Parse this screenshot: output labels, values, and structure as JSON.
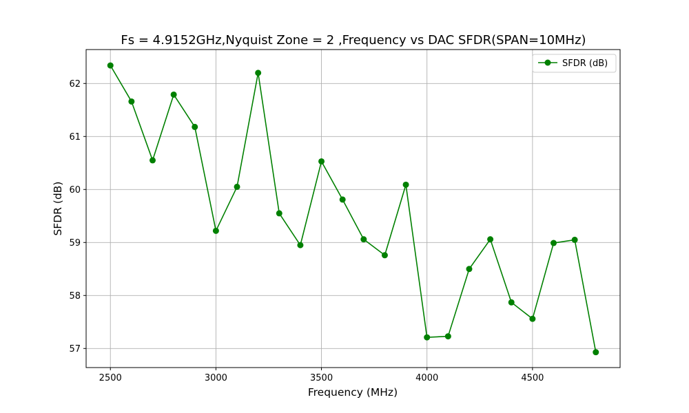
{
  "chart_data": {
    "type": "line",
    "title": "Fs = 4.9152GHz,Nyquist Zone = 2 ,Frequency vs DAC SFDR(SPAN=10MHz)",
    "xlabel": "Frequency (MHz)",
    "ylabel": "SFDR (dB)",
    "xlim": [
      2385,
      4915
    ],
    "ylim": [
      56.64,
      62.64
    ],
    "xticks": [
      2500,
      3000,
      3500,
      4000,
      4500
    ],
    "yticks": [
      57,
      58,
      59,
      60,
      61,
      62
    ],
    "grid": true,
    "legend": {
      "placement": "top-right"
    },
    "series": [
      {
        "name": "SFDR (dB)",
        "color": "#008000",
        "marker": "circle",
        "x": [
          2500,
          2600,
          2700,
          2800,
          2900,
          3000,
          3100,
          3200,
          3300,
          3400,
          3500,
          3600,
          3700,
          3800,
          3900,
          4000,
          4100,
          4200,
          4300,
          4400,
          4500,
          4600,
          4700,
          4800
        ],
        "y": [
          62.34,
          61.66,
          60.55,
          61.79,
          61.18,
          59.22,
          60.05,
          62.2,
          59.55,
          58.95,
          60.53,
          59.81,
          59.06,
          58.76,
          60.09,
          57.21,
          57.23,
          58.5,
          59.06,
          57.87,
          57.56,
          58.99,
          59.05,
          56.93
        ]
      }
    ]
  }
}
